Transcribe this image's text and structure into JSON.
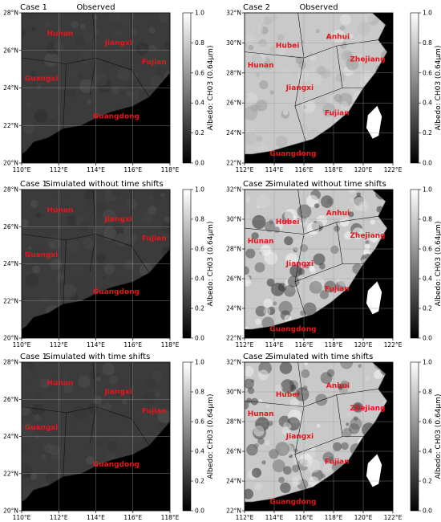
{
  "figure": {
    "colorbar_label": "Albedo: CH03 (0.64μm)",
    "colorbar_ticks": [
      "0.0",
      "0.2",
      "0.4",
      "0.6",
      "0.8",
      "1.0"
    ],
    "colorbar_range": [
      0.0,
      1.0
    ],
    "colormap": "grayscale (black = 0.0, white = 1.0)",
    "label_color": "#e8141c",
    "panels": [
      {
        "case": "Case 1",
        "title": "Observed",
        "xticks": [
          "110°E",
          "112°E",
          "114°E",
          "116°E",
          "118°E"
        ],
        "yticks": [
          "28°N",
          "26°N",
          "24°N",
          "22°N",
          "20°N"
        ],
        "provinces": [
          "Hunan",
          "Jiangxi",
          "Fujian",
          "Guangxi",
          "Guangdong"
        ]
      },
      {
        "case": "Case 2",
        "title": "Observed",
        "xticks": [
          "112°E",
          "114°E",
          "116°E",
          "118°E",
          "120°E",
          "122°E"
        ],
        "yticks": [
          "32°N",
          "30°N",
          "28°N",
          "26°N",
          "24°N",
          "22°N"
        ],
        "provinces": [
          "Hubei",
          "Anhui",
          "Hunan",
          "Zhejiang",
          "Jiangxi",
          "Fujian",
          "Guangdong"
        ]
      },
      {
        "case": "Case 1",
        "title": "Simulated without time shifts",
        "xticks": [
          "110°E",
          "112°E",
          "114°E",
          "116°E",
          "118°E"
        ],
        "yticks": [
          "28°N",
          "26°N",
          "24°N",
          "22°N",
          "20°N"
        ],
        "provinces": [
          "Hunan",
          "Jiangxi",
          "Fujian",
          "Guangxi",
          "Guangdong"
        ]
      },
      {
        "case": "Case 2",
        "title": "Simulated without time shifts",
        "xticks": [
          "112°E",
          "114°E",
          "116°E",
          "118°E",
          "120°E",
          "122°E"
        ],
        "yticks": [
          "32°N",
          "30°N",
          "28°N",
          "26°N",
          "24°N",
          "22°N"
        ],
        "provinces": [
          "Hubei",
          "Anhui",
          "Hunan",
          "Zhejiang",
          "Jiangxi",
          "Fujian",
          "Guangdong"
        ]
      },
      {
        "case": "Case 1",
        "title": "Simulated with time shifts",
        "xticks": [
          "110°E",
          "112°E",
          "114°E",
          "116°E",
          "118°E"
        ],
        "yticks": [
          "28°N",
          "26°N",
          "24°N",
          "22°N",
          "20°N"
        ],
        "provinces": [
          "Hunan",
          "Jiangxi",
          "Fujian",
          "Guangxi",
          "Guangdong"
        ]
      },
      {
        "case": "Case 2",
        "title": "Simulated with time shifts",
        "xticks": [
          "112°E",
          "114°E",
          "116°E",
          "118°E",
          "120°E",
          "122°E"
        ],
        "yticks": [
          "32°N",
          "30°N",
          "28°N",
          "26°N",
          "24°N",
          "22°N"
        ],
        "provinces": [
          "Hubei",
          "Anhui",
          "Hunan",
          "Zhejiang",
          "Jiangxi",
          "Fujian",
          "Guangdong"
        ]
      }
    ]
  }
}
